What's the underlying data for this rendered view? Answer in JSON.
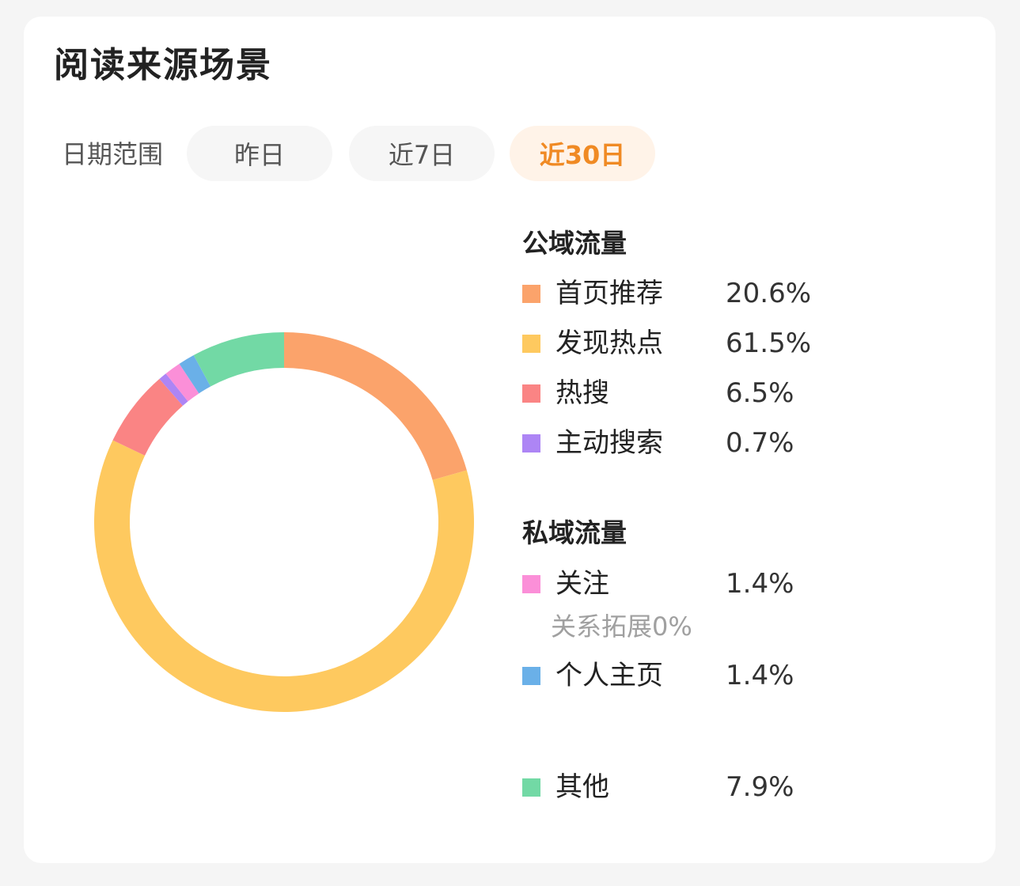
{
  "title": "阅读来源场景",
  "filter": {
    "label": "日期范围",
    "options": [
      "昨日",
      "近7日",
      "近30日"
    ],
    "selected": "近30日"
  },
  "colors": {
    "accent": "#f08a24",
    "accent_bg": "#fff3e8"
  },
  "legend": {
    "public_title": "公域流量",
    "private_title": "私域流量",
    "public_items": [
      {
        "name": "首页推荐",
        "value": "20.6%",
        "color": "#fba36b"
      },
      {
        "name": "发现热点",
        "value": "61.5%",
        "color": "#fec95f"
      },
      {
        "name": "热搜",
        "value": "6.5%",
        "color": "#fa8484"
      },
      {
        "name": "主动搜索",
        "value": "0.7%",
        "color": "#ad85f5"
      }
    ],
    "private_items": [
      {
        "name": "关注",
        "value": "1.4%",
        "color": "#fb8fd8"
      },
      {
        "name": "个人主页",
        "value": "1.4%",
        "color": "#6ab0e8"
      }
    ],
    "sub_note": "关系拓展0%",
    "other": {
      "name": "其他",
      "value": "7.9%",
      "color": "#72d9a5"
    }
  },
  "chart_data": {
    "type": "pie",
    "style": "donut",
    "labels": [
      "首页推荐",
      "发现热点",
      "热搜",
      "主动搜索",
      "关注",
      "关系拓展",
      "个人主页",
      "其他"
    ],
    "values": [
      20.6,
      61.5,
      6.5,
      0.7,
      1.4,
      0,
      1.4,
      7.9
    ],
    "colors": [
      "#fba36b",
      "#fec95f",
      "#fa8484",
      "#ad85f5",
      "#fb8fd8",
      "#cccccc",
      "#6ab0e8",
      "#72d9a5"
    ],
    "start_angle_deg": 0,
    "direction": "clockwise"
  }
}
